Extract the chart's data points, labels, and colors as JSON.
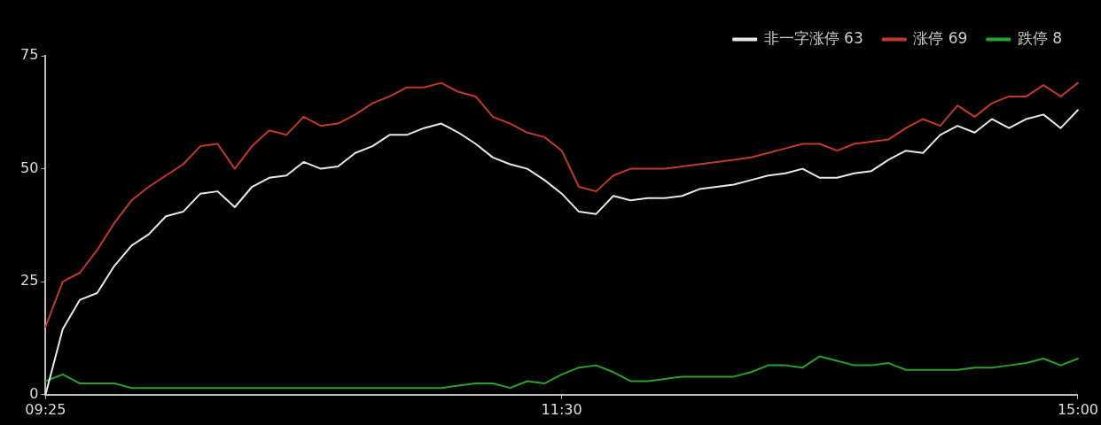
{
  "chart_data": {
    "type": "line",
    "categories": [
      "09:25",
      null,
      null,
      null,
      null,
      null,
      null,
      null,
      null,
      null,
      null,
      null,
      null,
      null,
      null,
      null,
      null,
      null,
      null,
      null,
      null,
      null,
      null,
      null,
      null,
      null,
      null,
      null,
      null,
      null,
      "11:30",
      null,
      null,
      null,
      null,
      null,
      null,
      null,
      null,
      null,
      null,
      null,
      null,
      null,
      null,
      null,
      null,
      null,
      null,
      null,
      null,
      null,
      null,
      null,
      null,
      null,
      null,
      null,
      null,
      null,
      "15:00"
    ],
    "ylim": [
      0,
      75
    ],
    "yticks": [
      0,
      25,
      50,
      75
    ],
    "grid": false,
    "legend": "top right",
    "marker": "none",
    "line_style": "solid",
    "series": [
      {
        "name": "非一字涨停 63",
        "color": "#e8e8e8",
        "values": [
          0,
          14.5,
          21,
          22.5,
          28.5,
          33,
          35.5,
          39.5,
          40.5,
          44.5,
          45,
          41.5,
          46,
          48,
          48.5,
          51.5,
          50,
          50.5,
          53.5,
          55,
          57.5,
          57.5,
          59,
          60,
          58,
          55.5,
          52.5,
          51,
          50,
          47.5,
          44.5,
          40.5,
          40,
          44,
          43,
          43.5,
          43.5,
          44,
          45.5,
          46,
          46.5,
          47.5,
          48.5,
          49,
          50,
          48,
          48,
          49,
          49.5,
          52,
          54,
          53.5,
          57.5,
          59.5,
          58,
          61,
          59,
          61,
          62,
          59,
          63
        ]
      },
      {
        "name": "涨停 69",
        "color": "#c0392b",
        "values": [
          15,
          25,
          27,
          32,
          38,
          43,
          46,
          48.5,
          51,
          55,
          55.5,
          50,
          55,
          58.5,
          57.5,
          61.5,
          59.5,
          60,
          62,
          64.5,
          66,
          68,
          68,
          69,
          67,
          66,
          61.5,
          60,
          58,
          57,
          54,
          46,
          45,
          48.5,
          50,
          50,
          50,
          50.5,
          51,
          51.5,
          52,
          52.5,
          53.5,
          54.5,
          55.5,
          55.5,
          54,
          55.5,
          56,
          56.5,
          59,
          61,
          59.5,
          64,
          61.5,
          64.5,
          66,
          66,
          68.5,
          66,
          69
        ]
      },
      {
        "name": "跌停 8",
        "color": "#2ca02c",
        "values": [
          3,
          4.5,
          2.5,
          2.5,
          2.5,
          1.5,
          1.5,
          1.5,
          1.5,
          1.5,
          1.5,
          1.5,
          1.5,
          1.5,
          1.5,
          1.5,
          1.5,
          1.5,
          1.5,
          1.5,
          1.5,
          1.5,
          1.5,
          1.5,
          2,
          2.5,
          2.5,
          1.5,
          3,
          2.5,
          4.5,
          6,
          6.5,
          5,
          3,
          3,
          3.5,
          4,
          4,
          4,
          4,
          5,
          6.5,
          6.5,
          6,
          8.5,
          7.5,
          6.5,
          6.5,
          7,
          5.5,
          5.5,
          5.5,
          5.5,
          6,
          6,
          6.5,
          7,
          8,
          6.5,
          8
        ]
      }
    ]
  }
}
